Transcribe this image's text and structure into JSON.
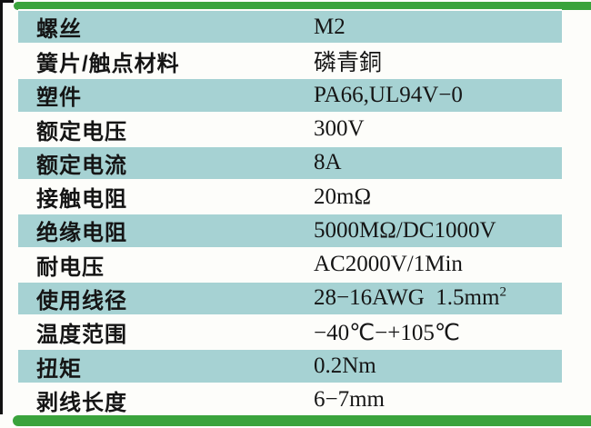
{
  "colors": {
    "row_shade": "#a6d2d3",
    "accent_green": "#3aa33c",
    "border_black": "#111111"
  },
  "table": {
    "rows": [
      {
        "label": "螺丝",
        "value": "M2"
      },
      {
        "label": "簧片/触点材料",
        "value": "磷青銅"
      },
      {
        "label": "塑件",
        "value": "PA66,UL94V−0"
      },
      {
        "label": "额定电压",
        "value": "300V"
      },
      {
        "label": "额定电流",
        "value": "8A"
      },
      {
        "label": "接触电阻",
        "value": "20mΩ"
      },
      {
        "label": "绝缘电阻",
        "value": "5000MΩ/DC1000V"
      },
      {
        "label": "耐电压",
        "value": "AC2000V/1Min"
      },
      {
        "label": "使用线径",
        "value": "28−16AWG  1.5mm",
        "sup": "2"
      },
      {
        "label": "温度范围",
        "value": "−40℃−+105℃"
      },
      {
        "label": "扭矩",
        "value": "0.2Nm"
      },
      {
        "label": "剥线长度",
        "value": "6−7mm"
      }
    ]
  }
}
